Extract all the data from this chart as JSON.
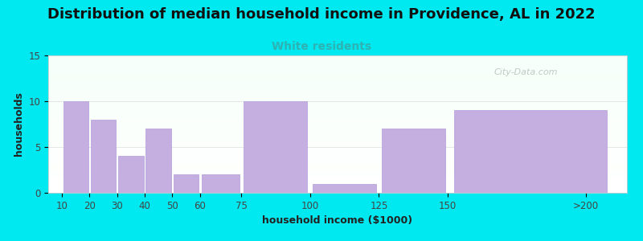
{
  "title": "Distribution of median household income in Providence, AL in 2022",
  "subtitle": "White residents",
  "subtitle_color": "#2db3b3",
  "xlabel": "household income ($1000)",
  "ylabel": "households",
  "tick_labels": [
    "10",
    "20",
    "30",
    "40",
    "50",
    "60",
    "75",
    "100",
    "125",
    "150",
    ">200"
  ],
  "tick_positions": [
    10,
    20,
    30,
    40,
    50,
    60,
    75,
    100,
    125,
    150,
    200
  ],
  "bar_lefts": [
    10,
    20,
    30,
    40,
    50,
    60,
    75,
    100,
    125,
    150
  ],
  "bar_rights": [
    20,
    30,
    40,
    50,
    60,
    75,
    100,
    125,
    150,
    210
  ],
  "values": [
    10,
    8,
    4,
    7,
    2,
    2,
    10,
    1,
    7,
    9
  ],
  "bar_color": "#c5aee0",
  "bar_edgecolor": "#b39ddb",
  "ylim": [
    0,
    15
  ],
  "yticks": [
    0,
    5,
    10,
    15
  ],
  "xlim": [
    5,
    215
  ],
  "background_color": "#00e8f0",
  "title_fontsize": 13,
  "subtitle_fontsize": 10,
  "axis_label_fontsize": 9,
  "tick_fontsize": 8.5,
  "title_color": "#111111",
  "axis_label_color": "#222222",
  "tick_color": "#444444",
  "watermark_text": "City-Data.com",
  "watermark_color": "#aaaaaa"
}
